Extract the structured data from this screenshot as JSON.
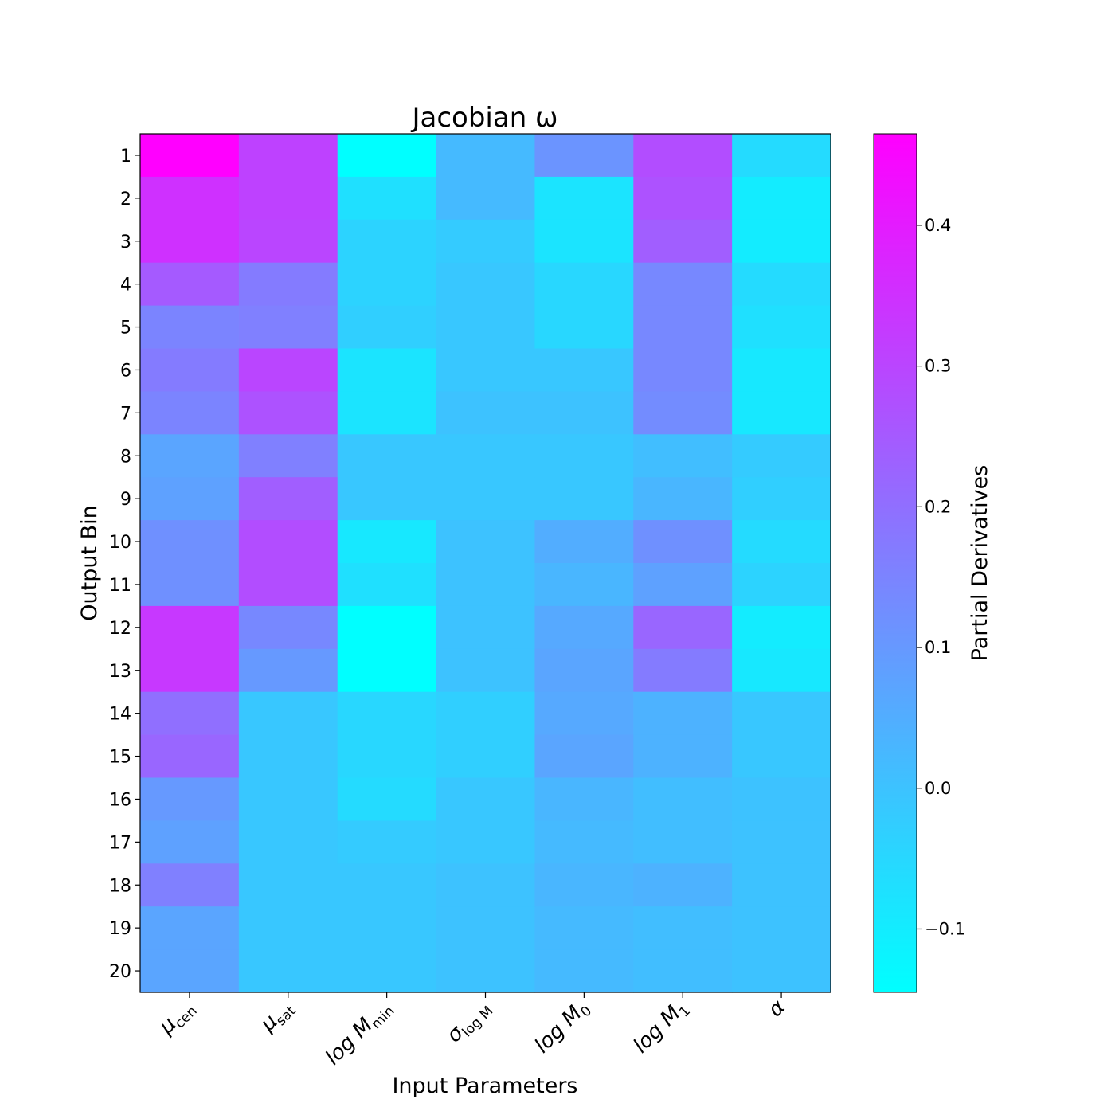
{
  "chart_data": {
    "type": "heatmap",
    "title": "Jacobian ω",
    "xlabel": "Input Parameters",
    "ylabel": "Output Bin",
    "colorbar_label": "Partial Derivatives",
    "colormap": "cool",
    "colormap_colors": [
      "#00ffff",
      "#ff00ff"
    ],
    "clim": [
      -0.145,
      0.465
    ],
    "colorbar_ticks": [
      -0.1,
      0.0,
      0.1,
      0.2,
      0.3,
      0.4
    ],
    "colorbar_tick_labels": [
      "−0.1",
      "0.0",
      "0.1",
      "0.2",
      "0.3",
      "0.4"
    ],
    "x_tick_labels": [
      {
        "base": "μ",
        "sub": "cen"
      },
      {
        "base": "μ",
        "sub": "sat"
      },
      {
        "base": "log M",
        "sub": "min"
      },
      {
        "base": "σ",
        "sub": "log M"
      },
      {
        "base": "log M",
        "sub": "0"
      },
      {
        "base": "log M",
        "sub": "1"
      },
      {
        "base": "α",
        "sub": ""
      }
    ],
    "y_tick_labels": [
      "1",
      "2",
      "3",
      "4",
      "5",
      "6",
      "7",
      "8",
      "9",
      "10",
      "11",
      "12",
      "13",
      "14",
      "15",
      "16",
      "17",
      "18",
      "19",
      "20"
    ],
    "values": [
      [
        0.465,
        0.31,
        -0.145,
        0.02,
        0.11,
        0.28,
        -0.06
      ],
      [
        0.35,
        0.31,
        -0.07,
        0.02,
        -0.08,
        0.27,
        -0.1
      ],
      [
        0.35,
        0.3,
        -0.04,
        -0.02,
        -0.08,
        0.24,
        -0.1
      ],
      [
        0.25,
        0.17,
        -0.04,
        -0.01,
        -0.05,
        0.14,
        -0.06
      ],
      [
        0.15,
        0.16,
        -0.03,
        -0.01,
        -0.05,
        0.14,
        -0.07
      ],
      [
        0.17,
        0.3,
        -0.08,
        -0.01,
        -0.01,
        0.14,
        -0.09
      ],
      [
        0.15,
        0.27,
        -0.08,
        0.0,
        0.0,
        0.13,
        -0.09
      ],
      [
        0.07,
        0.16,
        -0.01,
        -0.01,
        -0.01,
        0.01,
        -0.02
      ],
      [
        0.08,
        0.24,
        -0.01,
        -0.01,
        -0.01,
        0.03,
        -0.03
      ],
      [
        0.12,
        0.28,
        -0.09,
        0.0,
        0.05,
        0.12,
        -0.06
      ],
      [
        0.12,
        0.28,
        -0.07,
        0.0,
        0.03,
        0.08,
        -0.04
      ],
      [
        0.33,
        0.14,
        -0.145,
        0.0,
        0.06,
        0.22,
        -0.1
      ],
      [
        0.33,
        0.1,
        -0.145,
        0.0,
        0.07,
        0.17,
        -0.09
      ],
      [
        0.2,
        -0.01,
        -0.05,
        -0.03,
        0.06,
        0.04,
        -0.01
      ],
      [
        0.22,
        -0.01,
        -0.05,
        -0.03,
        0.07,
        0.04,
        -0.01
      ],
      [
        0.1,
        -0.01,
        -0.06,
        -0.01,
        0.03,
        0.01,
        0.0
      ],
      [
        0.08,
        -0.01,
        -0.02,
        -0.01,
        0.02,
        0.01,
        0.0
      ],
      [
        0.16,
        -0.01,
        -0.01,
        0.0,
        0.03,
        0.04,
        0.0
      ],
      [
        0.07,
        -0.01,
        -0.01,
        0.0,
        0.02,
        0.01,
        0.0
      ],
      [
        0.07,
        -0.01,
        -0.01,
        0.0,
        0.02,
        0.01,
        0.0
      ]
    ]
  }
}
